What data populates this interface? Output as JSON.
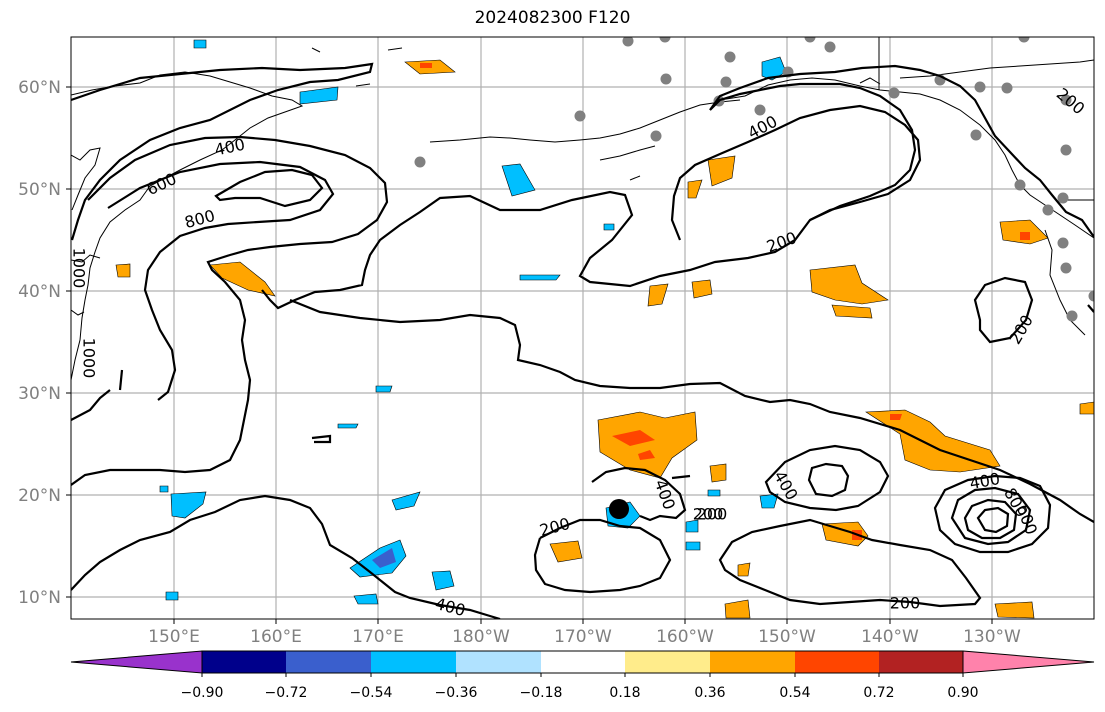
{
  "title": "2024082300 F120",
  "map": {
    "lat_labels": [
      "60°N",
      "50°N",
      "40°N",
      "30°N",
      "20°N",
      "10°N"
    ],
    "lon_labels": [
      "150°E",
      "160°E",
      "170°E",
      "180°W",
      "170°W",
      "160°W",
      "150°W",
      "140°W",
      "130°W"
    ],
    "contour_labels": [
      "400",
      "600",
      "800",
      "1000",
      "400",
      "200",
      "200",
      "200",
      "400",
      "400",
      "200",
      "200",
      "400",
      "800",
      "600",
      "400",
      "200",
      "1000",
      "200"
    ],
    "colors": {
      "stations": "#808080",
      "storm_center": "#000000",
      "graticule": "#b0b0b0",
      "coast": "#000000"
    }
  },
  "colorbar": {
    "colors": [
      "#9932cc",
      "#00008b",
      "#3a5fcd",
      "#00bfff",
      "#b0e2ff",
      "#ffffff",
      "#ffec8b",
      "#ffa500",
      "#ff4500",
      "#b22222",
      "#ff82ab"
    ],
    "tick_labels": [
      "−0.90",
      "−0.72",
      "−0.54",
      "−0.36",
      "−0.18",
      "0.18",
      "0.36",
      "0.54",
      "0.72",
      "0.90"
    ]
  }
}
